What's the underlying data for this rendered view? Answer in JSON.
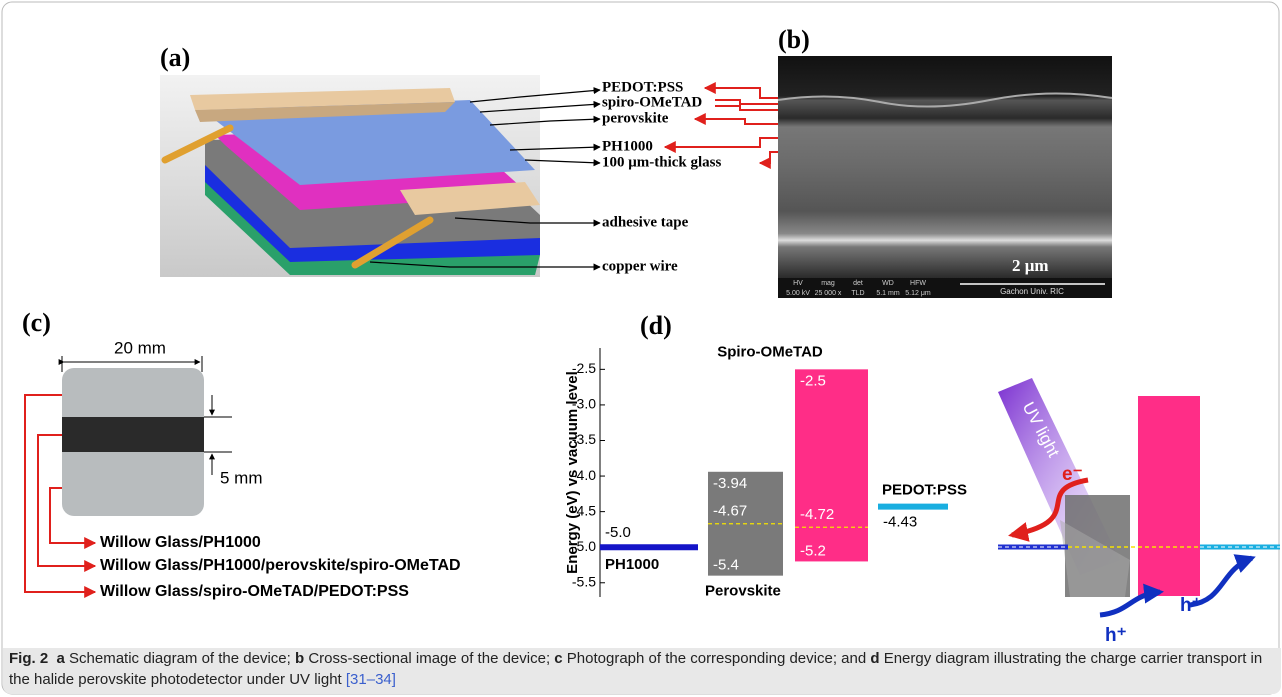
{
  "figure": {
    "panel_a": {
      "letter": "(a)",
      "labels": [
        "PEDOT:PSS",
        "spiro-OMeTAD",
        "perovskite",
        "PH1000",
        "100 μm-thick glass",
        "adhesive tape",
        "copper wire"
      ]
    },
    "panel_b": {
      "letter": "(b)",
      "scale_bar": "2 μm",
      "info_headers": [
        "HV",
        "mag",
        "det",
        "WD",
        "HFW"
      ],
      "info_values": [
        "5.00 kV",
        "25 000 x",
        "TLD",
        "5.1 mm",
        "5.12 μm"
      ],
      "institution": "Gachon Univ. RIC"
    },
    "panel_c": {
      "letter": "(c)",
      "width": "20 mm",
      "stripe": "5 mm",
      "labels": [
        "Willow Glass/PH1000",
        "Willow Glass/PH1000/perovskite/spiro-OMeTAD",
        "Willow Glass/spiro-OMeTAD/PEDOT:PSS"
      ]
    },
    "panel_d": {
      "letter": "(d)",
      "uv": "UV light",
      "electron": "e⁻",
      "holes": [
        "h⁺",
        "h⁺"
      ]
    }
  },
  "chart_data": {
    "type": "energy-levels",
    "y_label": "Energy (eV) vs vacuum level",
    "ylim": [
      -5.7,
      -2.2
    ],
    "yticks": [
      -2.5,
      {
        "value": -3,
        "label": "-3.0"
      },
      -3.5,
      {
        "value": -4,
        "label": "-4.0"
      },
      -4.5,
      {
        "value": -5,
        "label": "-5.0"
      },
      -5.5
    ],
    "fermi_color": "#f5e400",
    "series": [
      {
        "name": "PH1000",
        "color": "#1414c8",
        "values": [
          -5
        ],
        "value_labels": [
          "-5.0"
        ]
      },
      {
        "name": "Perovskite",
        "color": "#7a7a7a",
        "values": [
          -3.94,
          -4.67,
          -5.4
        ]
      },
      {
        "name": "Spiro-OMeTAD",
        "color": "#ff2d87",
        "values": [
          -2.5,
          -4.72,
          -5.2
        ]
      },
      {
        "name": "PEDOT:PSS",
        "color": "#19aee0",
        "values": [
          -4.43
        ]
      }
    ]
  },
  "caption": {
    "figure": "Fig. 2",
    "parts": [
      {
        "letter": "a",
        "text": "Schematic diagram of the device;"
      },
      {
        "letter": "b",
        "text": "Cross-sectional image of the device;"
      },
      {
        "letter": "c",
        "text": "Photograph of the corresponding device; and"
      },
      {
        "letter": "d",
        "text": "Energy diagram illustrating the charge carrier transport in the halide perovskite photodetector under UV light"
      }
    ],
    "refs": "[31–34]"
  }
}
